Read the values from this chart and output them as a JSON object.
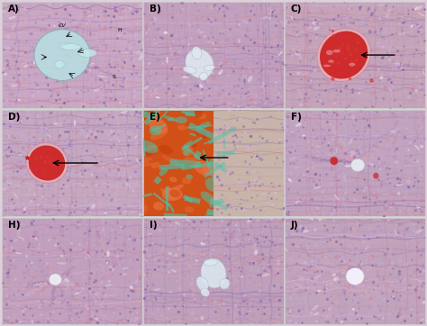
{
  "labels": [
    "A)",
    "B)",
    "C)",
    "D)",
    "E)",
    "F)",
    "H)",
    "I)",
    "J)"
  ],
  "grid_rows": 3,
  "grid_cols": 3,
  "fig_bg": "#ddd0da",
  "panel_bg": [
    "#c8a8c4",
    "#c0a0bc",
    "#c4a4b8",
    "#c4a8c0",
    "#c8b4a8",
    "#c0a4be",
    "#c0a0bc",
    "#bea0ba",
    "#c0a4bc"
  ],
  "tissue_base": [
    "#c8a8cc",
    "#c0a0c4",
    "#c4a4c0",
    "#c4a8c8",
    "#c8b4b0",
    "#c0a4c8",
    "#c0a0c4",
    "#bea0c2",
    "#c0a4c4"
  ],
  "he_purples": [
    "#8060a0",
    "#9870b0",
    "#b090c8",
    "#c8a8d8",
    "#d8b8e0"
  ],
  "he_pinks": [
    "#c87090",
    "#d88898",
    "#e8a8b0",
    "#f0c0c8",
    "#cc8090"
  ],
  "he_whites": [
    "#f8f0f8",
    "#f0e8f0",
    "#ece4ec"
  ],
  "he_darks": [
    "#704880",
    "#886098",
    "#6040788"
  ],
  "vessel_A_color": "#b8dce0",
  "blood_color": "#cc2020",
  "blood_color2": "#dd3535",
  "teal_color": "#50c0a8",
  "orange_color": "#e05820",
  "white_vessel": "#e8e8f0",
  "fig_width": 4.74,
  "fig_height": 3.62,
  "dpi": 100
}
